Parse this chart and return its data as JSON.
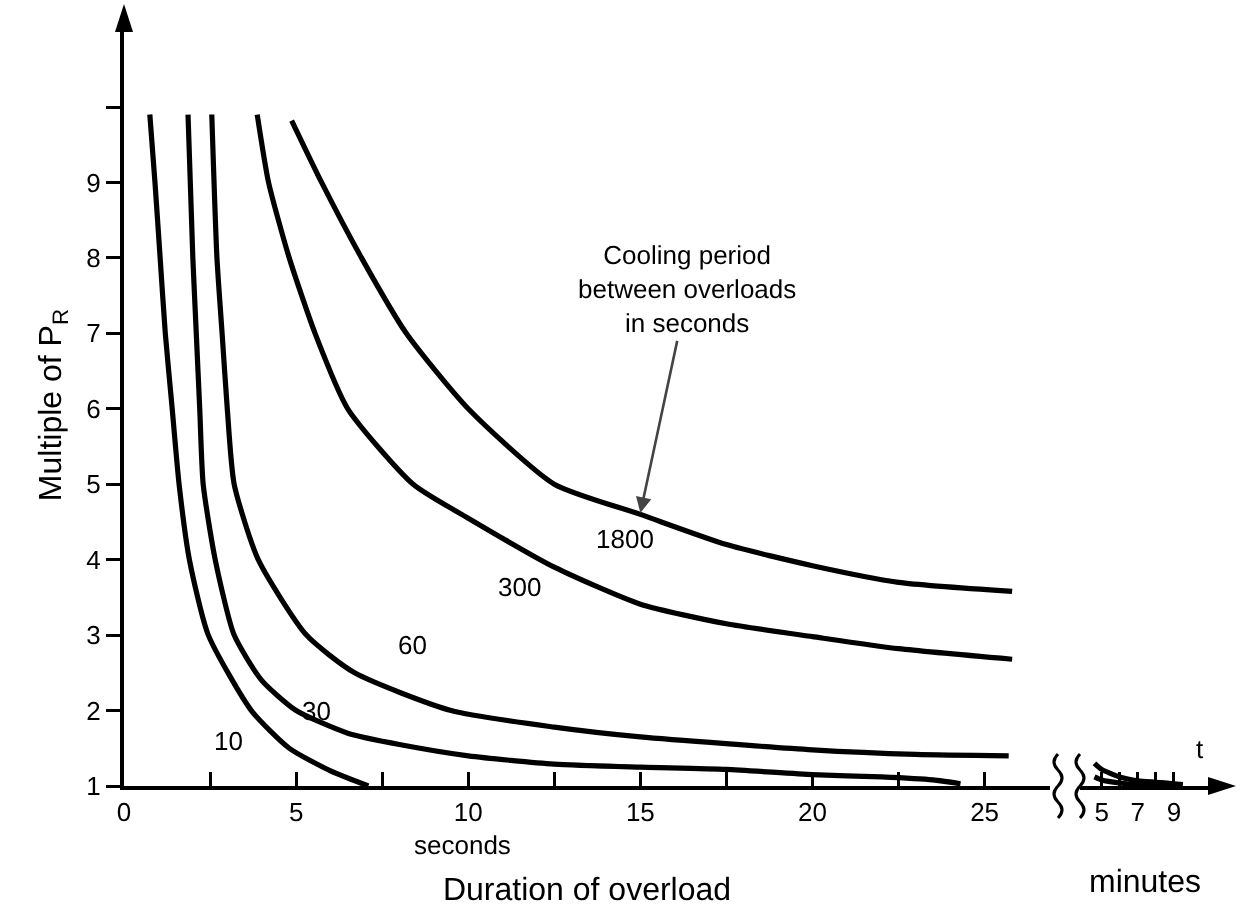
{
  "chart_data": [
    {
      "type": "line",
      "xlabel": "Duration of overload",
      "ylabel": "Multiple of P$_{R}$",
      "xlim": [
        0,
        26.9
      ],
      "ylim": [
        1,
        11.1
      ],
      "xticks": [
        0,
        {
          "value": 2.5,
          "label": null
        },
        5,
        {
          "value": 7.5,
          "label": null
        },
        10,
        {
          "value": 12.5,
          "label": null
        },
        15,
        {
          "value": 17.5,
          "label": null
        },
        20,
        {
          "value": 22.5,
          "label": null
        },
        25
      ],
      "yticks": [
        1,
        2,
        3,
        4,
        5,
        6,
        7,
        8,
        9,
        {
          "value": 10,
          "label": null
        }
      ],
      "grid": false,
      "line_style": "solid",
      "series": [
        {
          "name": "10",
          "color": "#000000",
          "x": [
            0.75,
            0.9,
            1.05,
            1.2,
            1.4,
            1.6,
            1.9,
            2.45,
            3.7,
            4.8,
            6,
            7.1
          ],
          "values": [
            9.9,
            9,
            8,
            7,
            6,
            5,
            4,
            3,
            2,
            1.5,
            1.2,
            1.0
          ]
        },
        {
          "name": "30",
          "color": "#000000",
          "x": [
            1.86,
            2.0,
            2.1,
            2.2,
            2.3,
            2.65,
            3.2,
            4.0,
            5.0,
            6.5,
            8,
            10,
            12.5,
            15,
            17.5,
            20,
            22,
            23.5,
            24.3
          ],
          "values": [
            9.9,
            8,
            7,
            6,
            5,
            4,
            3,
            2.4,
            2.0,
            1.7,
            1.55,
            1.4,
            1.29,
            1.25,
            1.22,
            1.15,
            1.12,
            1.08,
            1.03
          ]
        },
        {
          "name": "60",
          "color": "#000000",
          "x": [
            2.55,
            2.7,
            2.85,
            3.0,
            3.2,
            3.9,
            5.3,
            6.7,
            9.5,
            12.5,
            15,
            20,
            23,
            25.7
          ],
          "values": [
            9.9,
            8,
            7,
            6,
            5,
            4,
            3,
            2.5,
            2.0,
            1.78,
            1.65,
            1.48,
            1.42,
            1.4
          ]
        },
        {
          "name": "300",
          "color": "#000000",
          "x": [
            3.87,
            4.2,
            4.8,
            5.55,
            6.5,
            8.4,
            10,
            12.5,
            15,
            17.5,
            20,
            22.5,
            25.8
          ],
          "values": [
            9.9,
            9,
            8,
            7,
            6,
            5,
            4.55,
            3.9,
            3.41,
            3.15,
            2.98,
            2.82,
            2.68
          ]
        },
        {
          "name": "1800",
          "color": "#000000",
          "x": [
            4.87,
            5.74,
            6.9,
            8.2,
            10,
            12.5,
            15,
            17.5,
            20,
            22.5,
            25.8
          ],
          "values": [
            9.82,
            9,
            8,
            7,
            6,
            5,
            4.6,
            4.2,
            3.92,
            3.7,
            3.58
          ]
        }
      ],
      "annotations": [
        "seconds",
        {
          "text": "Cooling period\nbetween overloads\nin seconds",
          "x": 15,
          "y": 4.62
        }
      ]
    },
    {
      "type": "line",
      "xlabel": "minutes",
      "xlim": [
        3.8,
        11
      ],
      "ylim": [
        1,
        9
      ],
      "yticks": [
        1,
        2,
        3,
        4,
        5,
        6,
        7,
        8,
        9
      ],
      "tick_labels": "x",
      "grid": false,
      "line_style": "solid",
      "xticks": [
        5,
        {
          "value": 6,
          "label": null
        },
        7,
        {
          "value": 8,
          "label": null
        },
        9
      ],
      "series": [
        {
          "color": "#000000",
          "x": [
            4.6,
            5,
            6,
            7,
            8,
            9,
            9.5
          ],
          "values": [
            1.3,
            1.22,
            1.12,
            1.07,
            1.05,
            1.03,
            1.02
          ]
        },
        {
          "color": "#000000",
          "x": [
            4.6,
            5,
            6,
            7,
            8,
            9
          ],
          "values": [
            1.12,
            1.08,
            1.04,
            1.02,
            1.01,
            1.0
          ]
        }
      ],
      "annotations": [
        "t"
      ]
    }
  ]
}
